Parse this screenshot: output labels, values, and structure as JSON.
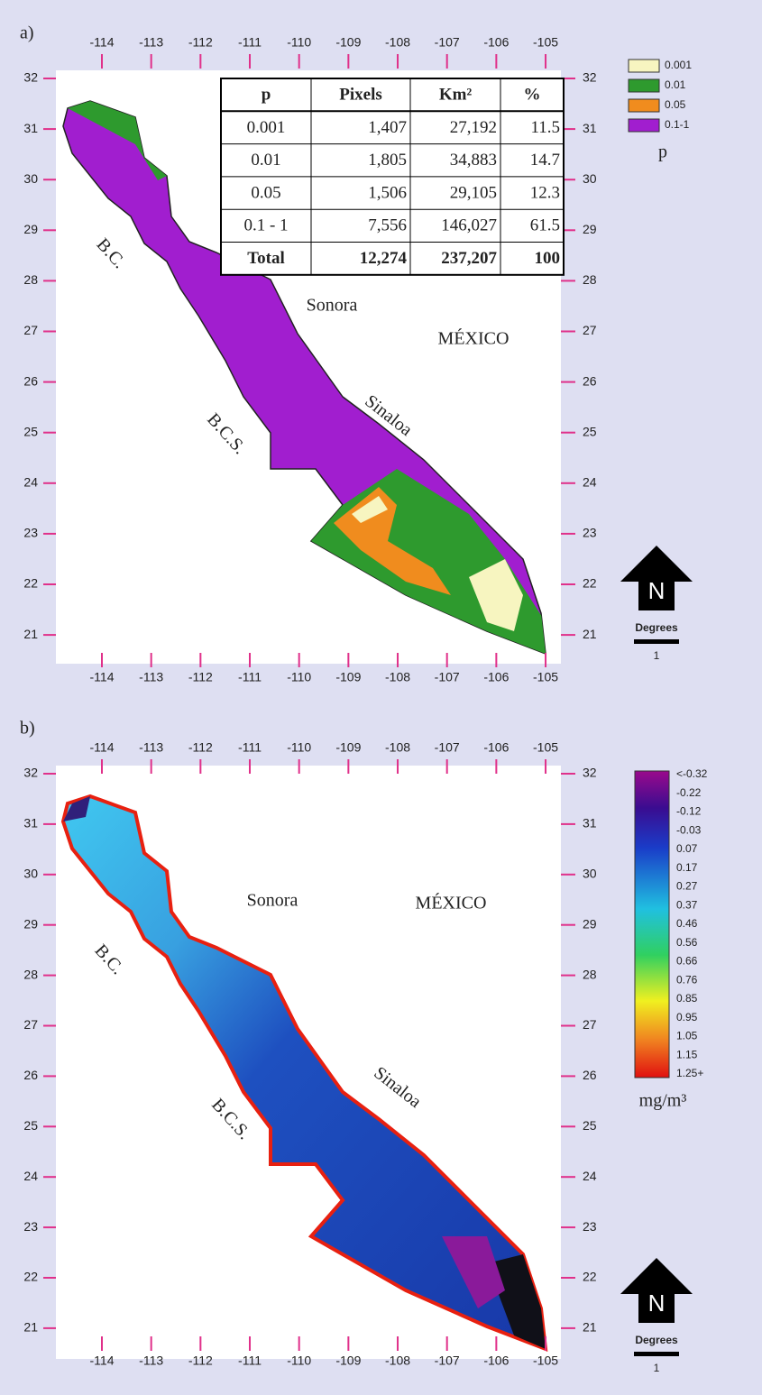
{
  "panels": [
    {
      "label": "a)",
      "lon_ticks": [
        -114,
        -113,
        -112,
        -111,
        -110,
        -109,
        -108,
        -107,
        -106,
        -105
      ],
      "lat_ticks": [
        32,
        31,
        30,
        29,
        28,
        27,
        26,
        25,
        24,
        23,
        22,
        21
      ],
      "places": [
        "B.C.",
        "Sonora",
        "MÉXICO",
        "Sinaloa",
        "B.C.S."
      ],
      "legend": {
        "items": [
          {
            "label": "0.001",
            "color": "#f7f5c0"
          },
          {
            "label": "0.01",
            "color": "#2e9a2e"
          },
          {
            "label": "0.05",
            "color": "#f08c1e"
          },
          {
            "label": "0.1-1",
            "color": "#a11ecf"
          }
        ],
        "title": "p"
      },
      "table": {
        "header": [
          "p",
          "Pixels",
          "Km²",
          "%"
        ],
        "rows": [
          [
            "0.001",
            "1,407",
            "27,192",
            "11.5"
          ],
          [
            "0.01",
            "1,805",
            "34,883",
            "14.7"
          ],
          [
            "0.05",
            "1,506",
            "29,105",
            "12.3"
          ],
          [
            "0.1 - 1",
            "7,556",
            "146,027",
            "61.5"
          ],
          [
            "Total",
            "12,274",
            "237,207",
            "100"
          ]
        ]
      },
      "north": "N",
      "scale_title": "Degrees",
      "scale_value": "1"
    },
    {
      "label": "b)",
      "lon_ticks": [
        -114,
        -113,
        -112,
        -111,
        -110,
        -109,
        -108,
        -107,
        -106,
        -105
      ],
      "lat_ticks": [
        32,
        31,
        30,
        29,
        28,
        27,
        26,
        25,
        24,
        23,
        22,
        21
      ],
      "places": [
        "B.C.",
        "Sonora",
        "MÉXICO",
        "Sinaloa",
        "B.C.S."
      ],
      "colorbar": {
        "ticks": [
          {
            "value": -0.32,
            "label": "<-0.32"
          },
          -0.22,
          -0.12,
          -0.03,
          0.07,
          0.17,
          0.27,
          0.37,
          0.46,
          0.56,
          0.66,
          0.76,
          0.85,
          0.95,
          1.05,
          1.15,
          {
            "value": 1.25,
            "label": "1.25+"
          }
        ],
        "unit": "mg/m³"
      },
      "north": "N",
      "scale_title": "Degrees",
      "scale_value": "1"
    }
  ]
}
